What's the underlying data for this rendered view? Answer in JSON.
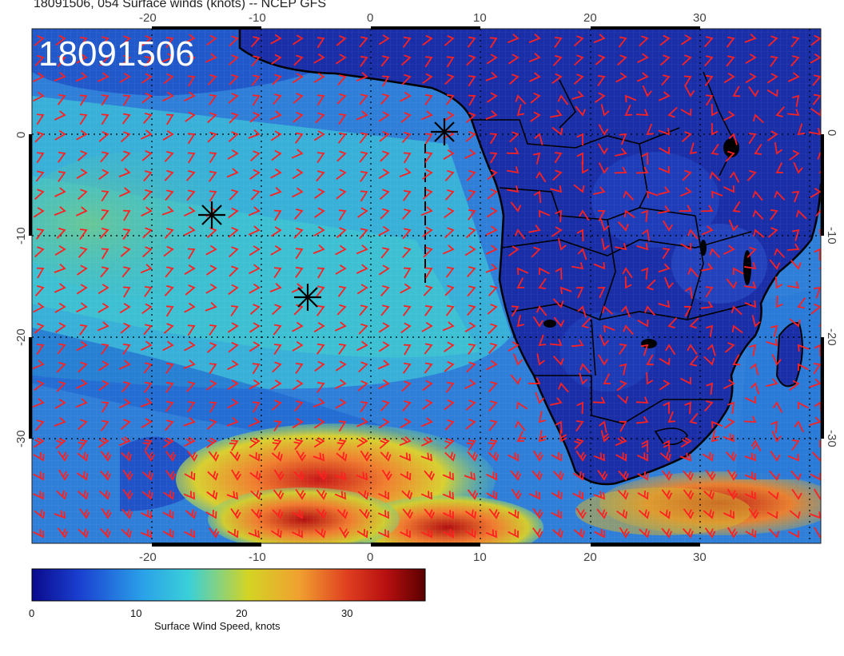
{
  "title": "18091506, 054 Surface winds (knots) -- NCEP GFS",
  "stamp": "18091506",
  "lon_ticks": [
    "-20",
    "-10",
    "0",
    "10",
    "20",
    "30"
  ],
  "lat_ticks": [
    "0",
    "-10",
    "-20",
    "-30"
  ],
  "colorbar": {
    "ticks": [
      "0",
      "10",
      "20",
      "30"
    ],
    "label": "Surface Wind Speed, knots",
    "colors": [
      "#0a0a8c",
      "#1a3fd0",
      "#2aa0e8",
      "#3ad0d8",
      "#d4d424",
      "#f0a030",
      "#e04020",
      "#b81010",
      "#5a0000"
    ]
  },
  "map": {
    "ocean_color": "#3a86d8",
    "land_color": "#1a2eb0",
    "barb_color": "#ff2020",
    "border_color": "#000000"
  }
}
